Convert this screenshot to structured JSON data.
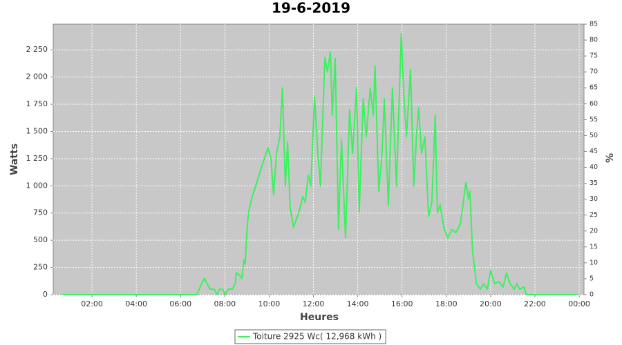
{
  "chart_data": {
    "type": "line",
    "title": "19-6-2019",
    "x_label": "Heures",
    "y_label": "Watts",
    "y2_label": "%",
    "x": [
      39,
      404,
      417,
      425,
      432,
      440,
      451,
      459,
      466,
      474,
      481,
      489,
      500,
      508,
      511,
      519,
      526,
      532,
      535,
      541,
      545,
      554,
      564,
      582,
      597,
      605,
      612,
      620,
      629,
      636,
      644,
      650,
      657,
      666,
      680,
      691,
      698,
      706,
      713,
      723,
      732,
      739,
      751,
      758,
      766,
      771,
      779,
      788,
      796,
      807,
      818,
      826,
      837,
      844,
      855,
      863,
      874,
      882,
      887,
      897,
      906,
      912,
      923,
      934,
      945,
      958,
      964,
      972,
      983,
      992,
      1000,
      1005,
      1013,
      1022,
      1032,
      1041,
      1050,
      1056,
      1063,
      1073,
      1084,
      1095,
      1106,
      1118,
      1125,
      1133,
      1140,
      1144,
      1151,
      1162,
      1172,
      1181,
      1191,
      1200,
      1211,
      1222,
      1234,
      1243,
      1253,
      1264,
      1271,
      1279,
      1290,
      1297,
      1434
    ],
    "series": [
      {
        "name": "Toiture 2925 Wc( 12,968 kWh )",
        "color": "#3cf060",
        "values": [
          0,
          0,
          100,
          150,
          100,
          50,
          50,
          0,
          50,
          50,
          0,
          50,
          50,
          100,
          200,
          180,
          150,
          320,
          280,
          650,
          770,
          900,
          1000,
          1200,
          1350,
          1250,
          920,
          1300,
          1450,
          1900,
          1000,
          1400,
          800,
          620,
          750,
          900,
          850,
          1100,
          1000,
          1820,
          1300,
          1000,
          2180,
          2050,
          2230,
          1650,
          2170,
          600,
          1420,
          520,
          1700,
          1300,
          1900,
          760,
          1800,
          1450,
          1900,
          1650,
          2100,
          950,
          1300,
          1800,
          820,
          1900,
          1000,
          2400,
          1900,
          1450,
          2070,
          1000,
          1500,
          1720,
          1300,
          1450,
          720,
          850,
          1650,
          750,
          830,
          620,
          520,
          600,
          570,
          650,
          820,
          1030,
          880,
          950,
          400,
          100,
          50,
          100,
          50,
          220,
          100,
          120,
          70,
          200,
          100,
          50,
          100,
          50,
          70,
          0,
          0
        ]
      }
    ],
    "xlim": [
      15,
      1453
    ],
    "xticks": [
      {
        "value": 120,
        "label": "02:00"
      },
      {
        "value": 240,
        "label": "04:00"
      },
      {
        "value": 360,
        "label": "06:00"
      },
      {
        "value": 480,
        "label": "08:00"
      },
      {
        "value": 600,
        "label": "10:00"
      },
      {
        "value": 720,
        "label": "12:00"
      },
      {
        "value": 840,
        "label": "14:00"
      },
      {
        "value": 960,
        "label": "16:00"
      },
      {
        "value": 1080,
        "label": "18:00"
      },
      {
        "value": 1200,
        "label": "20:00"
      },
      {
        "value": 1320,
        "label": "22:00"
      },
      {
        "value": 1440,
        "label": "00:00"
      }
    ],
    "ylim": [
      0,
      2486
    ],
    "yticks": [
      0,
      250,
      500,
      750,
      {
        "value": 1000,
        "label": "1 000"
      },
      {
        "value": 1250,
        "label": "1 250"
      },
      {
        "value": 1500,
        "label": "1 500"
      },
      {
        "value": 1750,
        "label": "1 750"
      },
      {
        "value": 2000,
        "label": "2 000"
      },
      {
        "value": 2250,
        "label": "2 250"
      }
    ],
    "y2lim": [
      0,
      85
    ],
    "y2ticks": [
      0,
      5,
      10,
      15,
      20,
      25,
      30,
      35,
      40,
      45,
      50,
      55,
      60,
      65,
      70,
      75,
      80,
      85
    ],
    "grid": true,
    "background": "#c8c8c8",
    "legend": "bottom"
  }
}
